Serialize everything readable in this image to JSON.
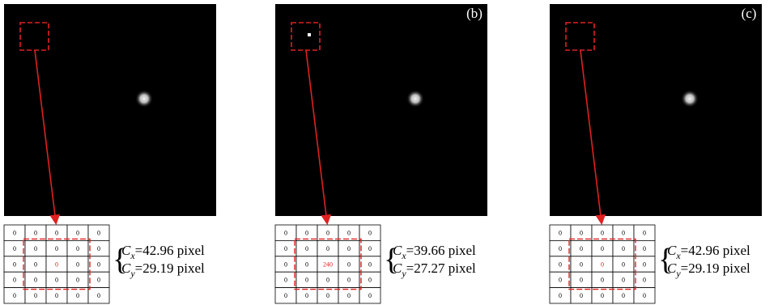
{
  "panels": [
    {
      "label": null,
      "grid": [
        [
          0,
          0,
          0,
          0,
          0
        ],
        [
          0,
          0,
          0,
          0,
          0
        ],
        [
          0,
          0,
          0,
          0,
          0
        ],
        [
          0,
          0,
          0,
          0,
          0
        ],
        [
          0,
          0,
          0,
          0,
          0
        ]
      ],
      "cx": {
        "symbol": "C",
        "sub": "x",
        "text": "=42.96 pixel"
      },
      "cy": {
        "symbol": "C",
        "sub": "y",
        "text": "=29.19 pixel"
      }
    },
    {
      "label": "(b)",
      "grid": [
        [
          0,
          0,
          0,
          0,
          0
        ],
        [
          0,
          0,
          0,
          0,
          0
        ],
        [
          0,
          0,
          240,
          0,
          0
        ],
        [
          0,
          0,
          0,
          0,
          0
        ],
        [
          0,
          0,
          0,
          0,
          0
        ]
      ],
      "cx": {
        "symbol": "C",
        "sub": "x",
        "text": "=39.66 pixel"
      },
      "cy": {
        "symbol": "C",
        "sub": "y",
        "text": "=27.27 pixel"
      }
    },
    {
      "label": "(c)",
      "grid": [
        [
          0,
          0,
          0,
          0,
          0
        ],
        [
          0,
          0,
          0,
          0,
          0
        ],
        [
          0,
          0,
          0,
          0,
          0
        ],
        [
          0,
          0,
          0,
          0,
          0
        ],
        [
          0,
          0,
          0,
          0,
          0
        ]
      ],
      "cx": {
        "symbol": "C",
        "sub": "x",
        "text": "=42.96 pixel"
      },
      "cy": {
        "symbol": "C",
        "sub": "y",
        "text": "=29.19 pixel"
      }
    }
  ]
}
